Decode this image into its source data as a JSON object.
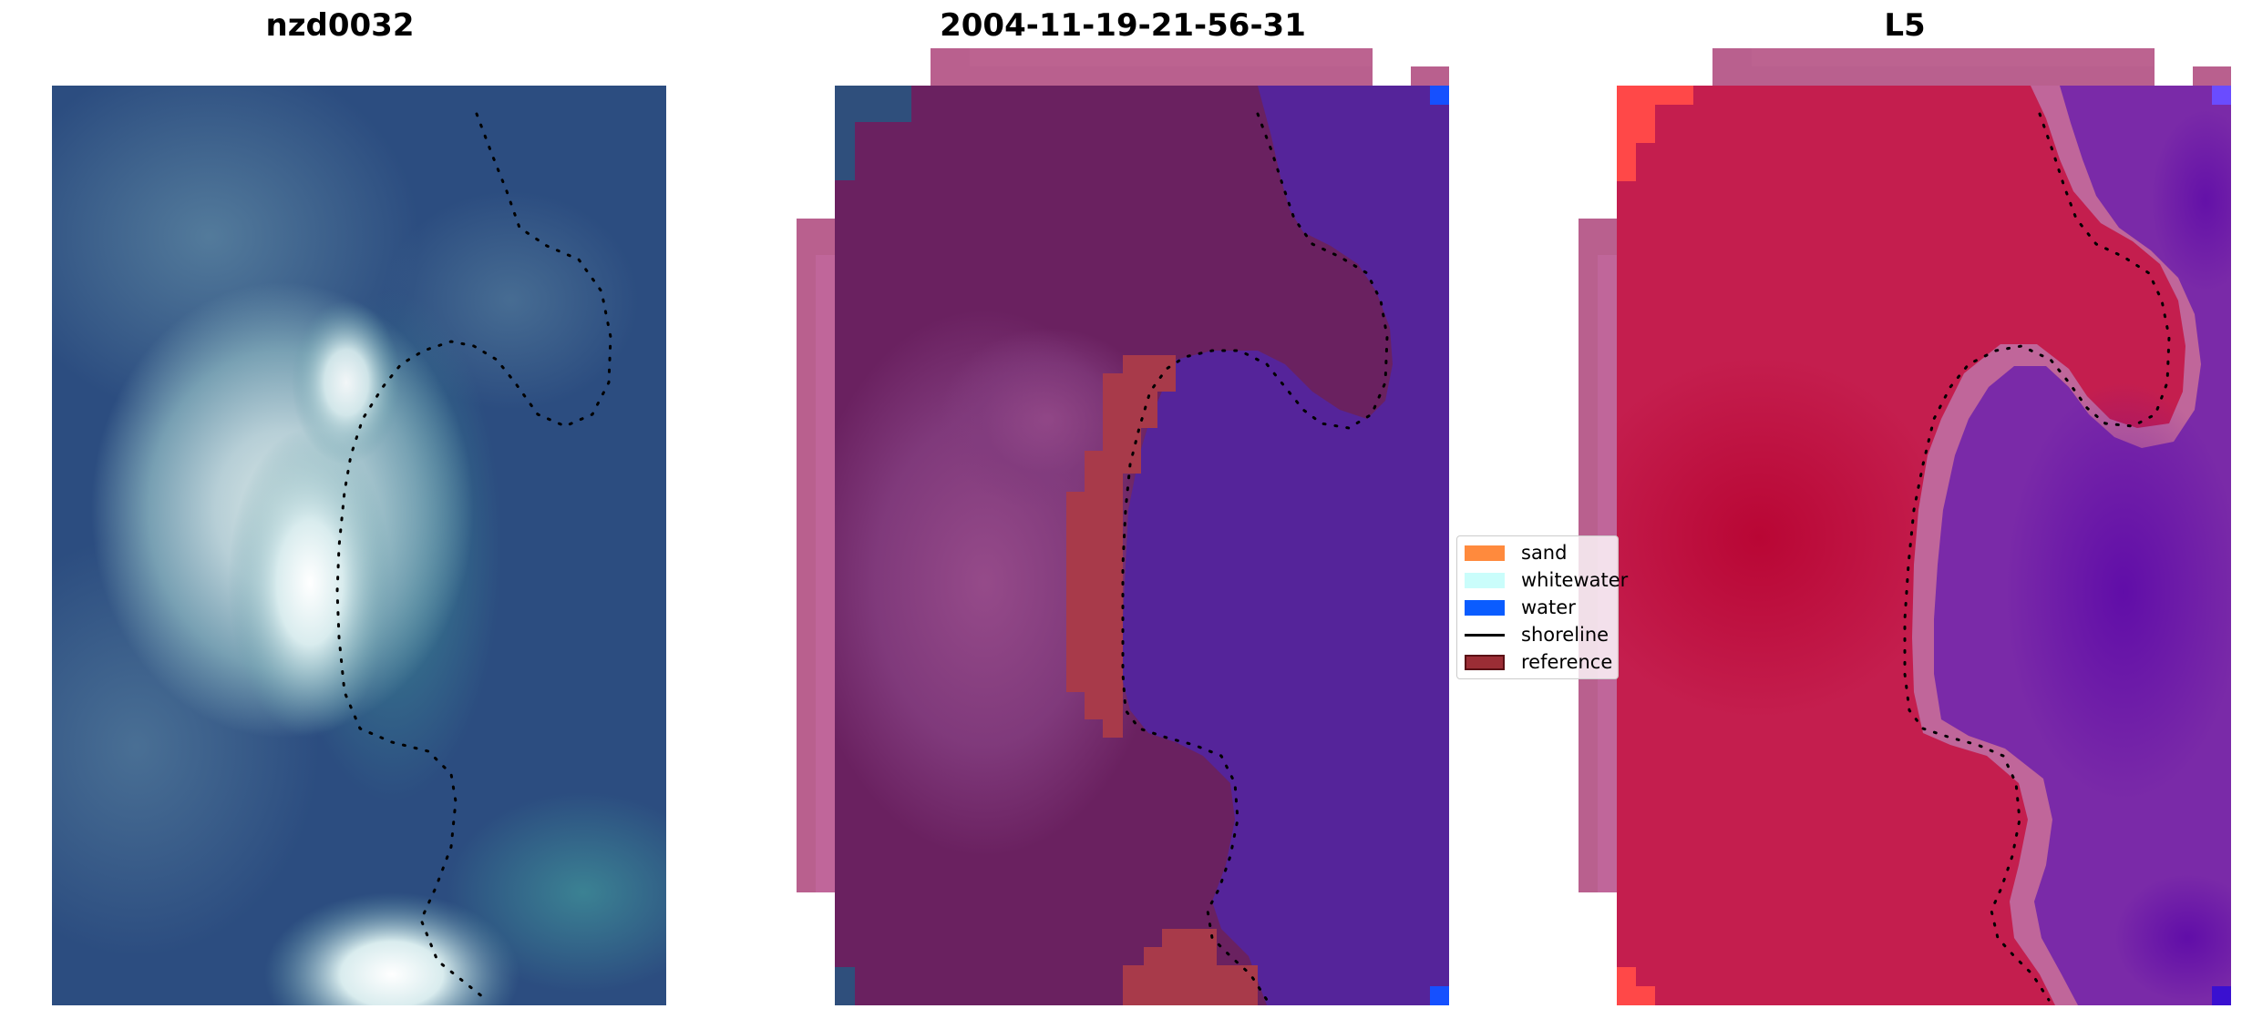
{
  "panels": [
    {
      "title": "nzd0032"
    },
    {
      "title": "2004-11-19-21-56-31"
    },
    {
      "title": "L5"
    }
  ],
  "legend": [
    {
      "label": "sand",
      "kind": "patch",
      "color": "#ff8a3d"
    },
    {
      "label": "whitewater",
      "kind": "patch",
      "color": "#cafdfb"
    },
    {
      "label": "water",
      "kind": "patch",
      "color": "#0a5cff"
    },
    {
      "label": "shoreline",
      "kind": "line",
      "color": "#000000"
    },
    {
      "label": "reference",
      "kind": "patch",
      "color": "#9b2d35",
      "edge": "#5a1015"
    }
  ],
  "colors": {
    "ocean_blue": "#2a4a7e",
    "whitewater_white": "#e8f6f2",
    "surf_teal": "#3f8c98",
    "overlay_pink": "#b9608e",
    "land_magenta": "#6b2160",
    "water_purple": "#55249a",
    "reference_red": "#a83a4a",
    "index_red": "#c0174a",
    "index_purple": "#6a1fa6",
    "corner_red": "#ff4848",
    "corner_blue": "#1550ff"
  }
}
